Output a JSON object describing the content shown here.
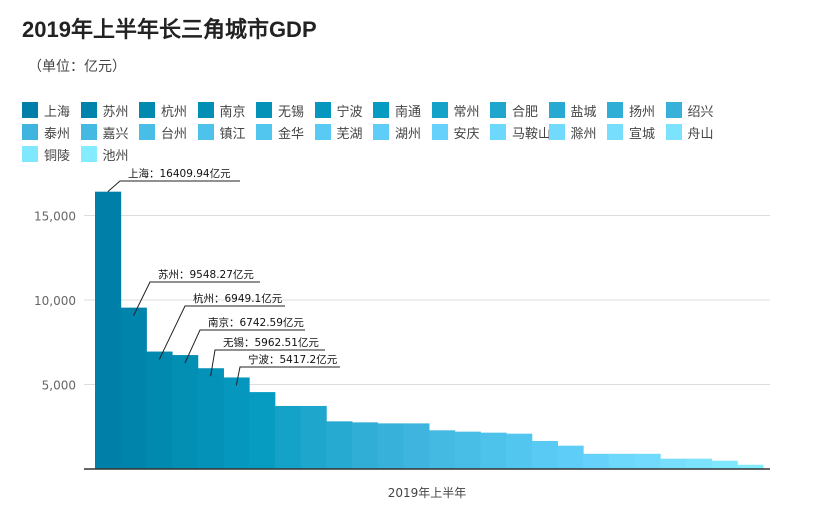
{
  "title": "2019年上半年长三角城市GDP",
  "subtitle": "（单位：亿元）",
  "chart_data": {
    "type": "bar",
    "title": "2019年上半年长三角城市GDP",
    "xlabel": "2019年上半年",
    "ylabel": "",
    "ylim": [
      0,
      17000
    ],
    "yticks": [
      5000,
      10000,
      15000
    ],
    "ytick_labels": [
      "5,000",
      "10,000",
      "15,000"
    ],
    "grid": true,
    "legend_position": "top",
    "categories": [
      "2019年上半年"
    ],
    "series": [
      {
        "name": "上海",
        "value": 16409.94,
        "color": "#0080a8"
      },
      {
        "name": "苏州",
        "value": 9548.27,
        "color": "#0184ac"
      },
      {
        "name": "杭州",
        "value": 6949.1,
        "color": "#0289b0"
      },
      {
        "name": "南京",
        "value": 6742.59,
        "color": "#038eb4"
      },
      {
        "name": "无锡",
        "value": 5962.51,
        "color": "#0492b8"
      },
      {
        "name": "宁波",
        "value": 5417.2,
        "color": "#0597bd"
      },
      {
        "name": "南通",
        "value": 4550,
        "color": "#069cc1"
      },
      {
        "name": "常州",
        "value": 3730,
        "color": "#15a2c8"
      },
      {
        "name": "合肥",
        "value": 3730,
        "color": "#1ea6cc"
      },
      {
        "name": "盐城",
        "value": 2820,
        "color": "#27aad2"
      },
      {
        "name": "扬州",
        "value": 2760,
        "color": "#30aed6"
      },
      {
        "name": "绍兴",
        "value": 2700,
        "color": "#38b1da"
      },
      {
        "name": "泰州",
        "value": 2700,
        "color": "#3fb4de"
      },
      {
        "name": "嘉兴",
        "value": 2290,
        "color": "#44b9e2"
      },
      {
        "name": "台州",
        "value": 2210,
        "color": "#48bde6"
      },
      {
        "name": "镇江",
        "value": 2150,
        "color": "#4dc2ea"
      },
      {
        "name": "金华",
        "value": 2090,
        "color": "#52c6ee"
      },
      {
        "name": "芜湖",
        "value": 1660,
        "color": "#58caf4"
      },
      {
        "name": "湖州",
        "value": 1380,
        "color": "#5ecdf8"
      },
      {
        "name": "安庆",
        "value": 900,
        "color": "#66d2fb"
      },
      {
        "name": "马鞍山",
        "value": 900,
        "color": "#6dd7fc"
      },
      {
        "name": "滁州",
        "value": 900,
        "color": "#72dbfd"
      },
      {
        "name": "宣城",
        "value": 610,
        "color": "#77dffd"
      },
      {
        "name": "舟山",
        "value": 610,
        "color": "#7be3fe"
      },
      {
        "name": "铜陵",
        "value": 490,
        "color": "#7fe8fe"
      },
      {
        "name": "池州",
        "value": 250,
        "color": "#83ecff"
      }
    ],
    "annotations": [
      "上海：16409.94亿元",
      "苏州：9548.27亿元",
      "杭州：6949.1亿元",
      "南京：6742.59亿元",
      "无锡：5962.51亿元",
      "宁波：5417.2亿元"
    ]
  }
}
